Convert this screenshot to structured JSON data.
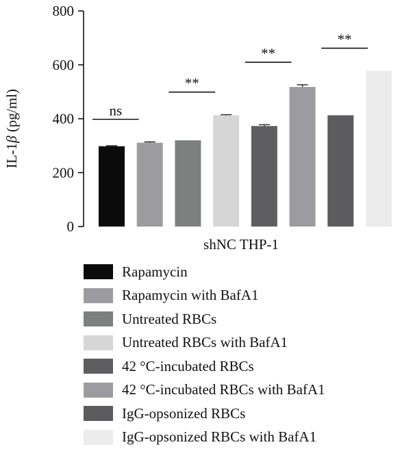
{
  "chart_data": {
    "type": "bar",
    "title": "",
    "xlabel": "shNC THP-1",
    "ylabel": {
      "prefix": "IL-1",
      "symbol": "β",
      "suffix": " (pg/ml)"
    },
    "ylim": [
      0,
      800
    ],
    "yticks": [
      "0",
      "200",
      "400",
      "600",
      "800"
    ],
    "grid": false,
    "legend_position": "bottom",
    "categories": [
      "Rapamycin",
      "Rapamycin with BafA1",
      "Untreated RBCs",
      "Untreated RBCs with BafA1",
      "42 °C-incubated RBCs",
      "42 °C-incubated RBCs with BafA1",
      "IgG-opsonized RBCs",
      "IgG-opsonized RBCs with BafA1"
    ],
    "values": [
      298,
      311,
      320,
      413,
      373,
      518,
      413,
      578
    ],
    "errors": [
      2,
      3,
      0,
      2,
      5,
      8,
      0,
      0
    ],
    "colors": [
      "#0b0b0b",
      "#9c9ca0",
      "#7e807f",
      "#d6d6d6",
      "#5e5e60",
      "#9c9ca0",
      "#5c5c5e",
      "#ececec"
    ],
    "significance": [
      {
        "pair": [
          0,
          1
        ],
        "label": "ns"
      },
      {
        "pair": [
          2,
          3
        ],
        "label": "**"
      },
      {
        "pair": [
          4,
          5
        ],
        "label": "**"
      },
      {
        "pair": [
          6,
          7
        ],
        "label": "**"
      }
    ]
  }
}
